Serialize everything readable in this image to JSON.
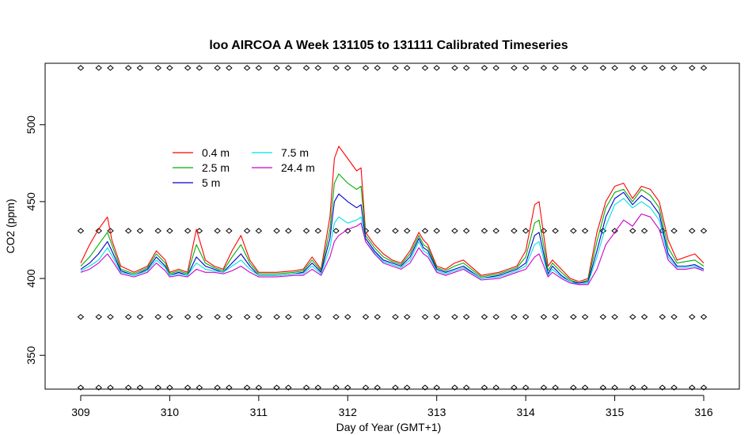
{
  "chart_data": {
    "type": "line",
    "title": "loo AIRCOA A  Week 131105 to 131111  Calibrated Timeseries",
    "xlabel": "Day of Year (GMT+1)",
    "ylabel": "CO2 (ppm)",
    "xlim": [
      309,
      316
    ],
    "ylim": [
      328,
      540
    ],
    "x_ticks": [
      309,
      310,
      311,
      312,
      313,
      314,
      315,
      316
    ],
    "y_ticks": [
      350,
      400,
      450,
      500
    ],
    "legend_position": "upper-left, inside plot",
    "series": [
      {
        "name": "0.4 m",
        "color": "#ff0000",
        "x": [
          309.0,
          309.1,
          309.2,
          309.3,
          309.35,
          309.45,
          309.6,
          309.75,
          309.85,
          309.95,
          310.0,
          310.1,
          310.2,
          310.3,
          310.4,
          310.5,
          310.6,
          310.7,
          310.8,
          310.9,
          311.0,
          311.2,
          311.4,
          311.5,
          311.6,
          311.7,
          311.8,
          311.85,
          311.9,
          312.0,
          312.1,
          312.15,
          312.2,
          312.3,
          312.4,
          312.5,
          312.6,
          312.7,
          312.8,
          312.85,
          312.9,
          313.0,
          313.1,
          313.2,
          313.3,
          313.5,
          313.7,
          313.9,
          314.0,
          314.1,
          314.15,
          314.25,
          314.3,
          314.4,
          314.5,
          314.6,
          314.7,
          314.8,
          314.9,
          315.0,
          315.1,
          315.2,
          315.3,
          315.4,
          315.5,
          315.6,
          315.7,
          315.8,
          315.9,
          316.0
        ],
        "y": [
          410,
          422,
          432,
          440,
          425,
          408,
          404,
          408,
          418,
          412,
          404,
          406,
          404,
          432,
          412,
          408,
          406,
          418,
          428,
          412,
          404,
          404,
          405,
          406,
          414,
          406,
          440,
          478,
          486,
          478,
          470,
          472,
          430,
          422,
          416,
          412,
          410,
          418,
          430,
          425,
          422,
          408,
          406,
          410,
          412,
          402,
          404,
          408,
          418,
          448,
          450,
          408,
          412,
          406,
          400,
          398,
          400,
          430,
          450,
          460,
          462,
          452,
          460,
          458,
          450,
          425,
          412,
          414,
          416,
          410
        ]
      },
      {
        "name": "2.5 m",
        "color": "#00b000",
        "x": [
          309.0,
          309.1,
          309.2,
          309.3,
          309.35,
          309.45,
          309.6,
          309.75,
          309.85,
          309.95,
          310.0,
          310.1,
          310.2,
          310.3,
          310.4,
          310.5,
          310.6,
          310.7,
          310.8,
          310.9,
          311.0,
          311.2,
          311.4,
          311.5,
          311.6,
          311.7,
          311.8,
          311.85,
          311.9,
          312.0,
          312.1,
          312.15,
          312.2,
          312.3,
          312.4,
          312.5,
          312.6,
          312.7,
          312.8,
          312.85,
          312.9,
          313.0,
          313.1,
          313.2,
          313.3,
          313.5,
          313.7,
          313.9,
          314.0,
          314.1,
          314.15,
          314.25,
          314.3,
          314.4,
          314.5,
          314.6,
          314.7,
          314.8,
          314.9,
          315.0,
          315.1,
          315.2,
          315.3,
          315.4,
          315.5,
          315.6,
          315.7,
          315.8,
          315.9,
          316.0
        ],
        "y": [
          408,
          414,
          422,
          430,
          422,
          406,
          403,
          407,
          416,
          410,
          403,
          405,
          403,
          422,
          410,
          407,
          405,
          414,
          422,
          410,
          403,
          403,
          404,
          405,
          412,
          405,
          432,
          462,
          468,
          462,
          458,
          460,
          428,
          420,
          414,
          411,
          409,
          416,
          428,
          422,
          420,
          407,
          405,
          408,
          410,
          401,
          403,
          407,
          414,
          436,
          438,
          405,
          410,
          404,
          399,
          397,
          399,
          424,
          446,
          456,
          458,
          450,
          458,
          454,
          446,
          420,
          410,
          411,
          412,
          408
        ]
      },
      {
        "name": "5 m",
        "color": "#0000cc",
        "x": [
          309.0,
          309.1,
          309.2,
          309.3,
          309.35,
          309.45,
          309.6,
          309.75,
          309.85,
          309.95,
          310.0,
          310.1,
          310.2,
          310.3,
          310.4,
          310.5,
          310.6,
          310.7,
          310.8,
          310.9,
          311.0,
          311.2,
          311.4,
          311.5,
          311.6,
          311.7,
          311.8,
          311.85,
          311.9,
          312.0,
          312.1,
          312.15,
          312.2,
          312.3,
          312.4,
          312.5,
          312.6,
          312.7,
          312.8,
          312.85,
          312.9,
          313.0,
          313.1,
          313.2,
          313.3,
          313.5,
          313.7,
          313.9,
          314.0,
          314.1,
          314.15,
          314.25,
          314.3,
          314.4,
          314.5,
          314.6,
          314.7,
          314.8,
          314.9,
          315.0,
          315.1,
          315.2,
          315.3,
          315.4,
          315.5,
          315.6,
          315.7,
          315.8,
          315.9,
          316.0
        ],
        "y": [
          406,
          410,
          416,
          424,
          418,
          405,
          402,
          406,
          414,
          408,
          402,
          404,
          402,
          414,
          408,
          406,
          404,
          410,
          416,
          408,
          402,
          402,
          403,
          404,
          410,
          404,
          426,
          450,
          455,
          450,
          446,
          448,
          426,
          418,
          412,
          410,
          408,
          414,
          426,
          420,
          418,
          406,
          404,
          406,
          408,
          400,
          402,
          406,
          410,
          428,
          430,
          403,
          408,
          402,
          398,
          397,
          398,
          418,
          440,
          452,
          456,
          448,
          454,
          450,
          442,
          416,
          408,
          408,
          409,
          406
        ]
      },
      {
        "name": "7.5 m",
        "color": "#00e0e0",
        "x": [
          309.0,
          309.1,
          309.2,
          309.3,
          309.35,
          309.45,
          309.6,
          309.75,
          309.85,
          309.95,
          310.0,
          310.1,
          310.2,
          310.3,
          310.4,
          310.5,
          310.6,
          310.7,
          310.8,
          310.9,
          311.0,
          311.2,
          311.4,
          311.5,
          311.6,
          311.7,
          311.8,
          311.85,
          311.9,
          312.0,
          312.1,
          312.15,
          312.2,
          312.3,
          312.4,
          312.5,
          312.6,
          312.7,
          312.8,
          312.85,
          312.9,
          313.0,
          313.1,
          313.2,
          313.3,
          313.5,
          313.7,
          313.9,
          314.0,
          314.1,
          314.15,
          314.25,
          314.3,
          314.4,
          314.5,
          314.6,
          314.7,
          314.8,
          314.9,
          315.0,
          315.1,
          315.2,
          315.3,
          315.4,
          315.5,
          315.6,
          315.7,
          315.8,
          315.9,
          316.0
        ],
        "y": [
          405,
          408,
          412,
          420,
          415,
          404,
          402,
          405,
          412,
          407,
          402,
          403,
          402,
          410,
          406,
          405,
          404,
          408,
          412,
          406,
          402,
          402,
          403,
          403,
          408,
          403,
          420,
          436,
          440,
          436,
          438,
          440,
          424,
          417,
          411,
          409,
          407,
          412,
          424,
          418,
          416,
          405,
          403,
          405,
          407,
          400,
          401,
          405,
          408,
          422,
          424,
          402,
          406,
          401,
          398,
          396,
          397,
          414,
          434,
          448,
          452,
          446,
          450,
          446,
          438,
          414,
          407,
          407,
          408,
          405
        ]
      },
      {
        "name": "24.4 m",
        "color": "#cc00cc",
        "x": [
          309.0,
          309.1,
          309.2,
          309.3,
          309.35,
          309.45,
          309.6,
          309.75,
          309.85,
          309.95,
          310.0,
          310.1,
          310.2,
          310.3,
          310.4,
          310.5,
          310.6,
          310.7,
          310.8,
          310.9,
          311.0,
          311.2,
          311.4,
          311.5,
          311.6,
          311.7,
          311.8,
          311.85,
          311.9,
          312.0,
          312.1,
          312.15,
          312.2,
          312.3,
          312.4,
          312.5,
          312.6,
          312.7,
          312.8,
          312.85,
          312.9,
          313.0,
          313.1,
          313.2,
          313.3,
          313.5,
          313.7,
          313.9,
          314.0,
          314.1,
          314.15,
          314.25,
          314.3,
          314.4,
          314.5,
          314.6,
          314.7,
          314.8,
          314.9,
          315.0,
          315.1,
          315.2,
          315.3,
          315.4,
          315.5,
          315.6,
          315.7,
          315.8,
          315.9,
          316.0
        ],
        "y": [
          404,
          406,
          410,
          416,
          412,
          403,
          401,
          404,
          410,
          405,
          401,
          402,
          401,
          406,
          404,
          404,
          403,
          405,
          408,
          404,
          401,
          401,
          402,
          402,
          406,
          402,
          414,
          424,
          428,
          432,
          434,
          436,
          424,
          416,
          410,
          408,
          406,
          410,
          420,
          416,
          414,
          404,
          402,
          404,
          406,
          399,
          400,
          404,
          406,
          414,
          416,
          401,
          404,
          400,
          397,
          396,
          396,
          406,
          422,
          430,
          438,
          434,
          442,
          440,
          432,
          412,
          406,
          406,
          407,
          405
        ]
      }
    ],
    "marker_rows": {
      "symbol": "◇",
      "y_levels": [
        537,
        431,
        375,
        329
      ],
      "x_start": 309.0,
      "x_end": 316.0,
      "count": 43
    }
  }
}
